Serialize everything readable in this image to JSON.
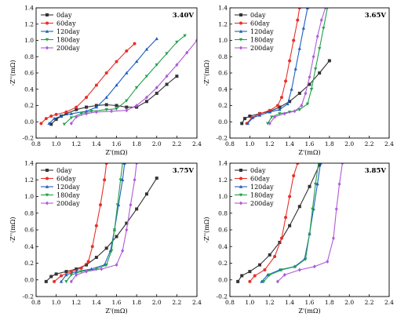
{
  "chart_data": [
    {
      "type": "line",
      "annotation": "3.40V",
      "xlabel": "Z'(mΩ)",
      "ylabel": "-Z''(mΩ)",
      "xlim": [
        0.8,
        2.4
      ],
      "ylim": [
        -0.2,
        1.4
      ],
      "xticks": [
        "0.8",
        "1.0",
        "1.2",
        "1.4",
        "1.6",
        "1.8",
        "2.0",
        "2.2",
        "2.4"
      ],
      "yticks": [
        "-0.2",
        "0.0",
        "0.2",
        "0.4",
        "0.6",
        "0.8",
        "1.0",
        "1.2",
        "1.4"
      ],
      "legend_position": "top-left",
      "series": [
        {
          "name": "0day",
          "color": "#333333",
          "marker": "square",
          "x": [
            0.95,
            1.0,
            1.05,
            1.1,
            1.2,
            1.3,
            1.4,
            1.5,
            1.6,
            1.7,
            1.8,
            1.9,
            2.0,
            2.1,
            2.2
          ],
          "y": [
            -0.03,
            0.03,
            0.07,
            0.1,
            0.15,
            0.18,
            0.2,
            0.21,
            0.2,
            0.18,
            0.18,
            0.25,
            0.35,
            0.46,
            0.56
          ]
        },
        {
          "name": "60day",
          "color": "#e8302a",
          "marker": "circle",
          "x": [
            0.85,
            0.9,
            0.95,
            1.0,
            1.1,
            1.2,
            1.3,
            1.4,
            1.5,
            1.6,
            1.7,
            1.78
          ],
          "y": [
            -0.02,
            0.04,
            0.07,
            0.09,
            0.12,
            0.18,
            0.3,
            0.45,
            0.6,
            0.74,
            0.87,
            0.96
          ]
        },
        {
          "name": "120day",
          "color": "#1f5fc4",
          "marker": "triangle",
          "x": [
            0.93,
            0.98,
            1.05,
            1.15,
            1.3,
            1.4,
            1.5,
            1.6,
            1.7,
            1.8,
            1.9,
            2.0
          ],
          "y": [
            -0.02,
            0.04,
            0.07,
            0.1,
            0.13,
            0.18,
            0.3,
            0.45,
            0.6,
            0.74,
            0.89,
            1.02
          ]
        },
        {
          "name": "180day",
          "color": "#22a04a",
          "marker": "triangle-down",
          "x": [
            1.08,
            1.15,
            1.25,
            1.35,
            1.5,
            1.6,
            1.7,
            1.8,
            1.9,
            2.0,
            2.1,
            2.2,
            2.28
          ],
          "y": [
            -0.03,
            0.05,
            0.1,
            0.13,
            0.15,
            0.16,
            0.26,
            0.42,
            0.56,
            0.7,
            0.84,
            0.98,
            1.06
          ]
        },
        {
          "name": "200day",
          "color": "#b05ad8",
          "marker": "diamond",
          "x": [
            1.15,
            1.2,
            1.3,
            1.4,
            1.55,
            1.7,
            1.8,
            1.9,
            2.0,
            2.1,
            2.2,
            2.3,
            2.4
          ],
          "y": [
            -0.02,
            0.06,
            0.1,
            0.12,
            0.13,
            0.14,
            0.2,
            0.3,
            0.42,
            0.56,
            0.7,
            0.85,
            1.0
          ]
        }
      ]
    },
    {
      "type": "line",
      "annotation": "3.65V",
      "xlabel": "Z'(mΩ)",
      "ylabel": "-Z''(mΩ)",
      "xlim": [
        0.8,
        2.4
      ],
      "ylim": [
        -0.2,
        1.4
      ],
      "xticks": [
        "0.8",
        "1.0",
        "1.2",
        "1.4",
        "1.6",
        "1.8",
        "2.0",
        "2.2",
        "2.4"
      ],
      "yticks": [
        "-0.2",
        "0.0",
        "0.2",
        "0.4",
        "0.6",
        "0.8",
        "1.0",
        "1.2",
        "1.4"
      ],
      "legend_position": "top-left",
      "series": [
        {
          "name": "0day",
          "color": "#333333",
          "marker": "square",
          "x": [
            0.92,
            0.95,
            1.0,
            1.1,
            1.2,
            1.3,
            1.4,
            1.5,
            1.6,
            1.7,
            1.8
          ],
          "y": [
            -0.02,
            0.04,
            0.07,
            0.1,
            0.13,
            0.18,
            0.25,
            0.35,
            0.46,
            0.6,
            0.75
          ]
        },
        {
          "name": "60day",
          "color": "#e8302a",
          "marker": "circle",
          "x": [
            0.97,
            1.02,
            1.1,
            1.2,
            1.28,
            1.32,
            1.36,
            1.4,
            1.44,
            1.48,
            1.5
          ],
          "y": [
            -0.02,
            0.05,
            0.1,
            0.14,
            0.2,
            0.3,
            0.5,
            0.75,
            1.0,
            1.25,
            1.4
          ]
        },
        {
          "name": "120day",
          "color": "#1f5fc4",
          "marker": "triangle",
          "x": [
            0.98,
            1.03,
            1.1,
            1.2,
            1.3,
            1.38,
            1.42,
            1.46,
            1.5,
            1.54,
            1.58
          ],
          "y": [
            -0.02,
            0.05,
            0.08,
            0.12,
            0.15,
            0.22,
            0.4,
            0.65,
            0.9,
            1.15,
            1.4
          ]
        },
        {
          "name": "180day",
          "color": "#22a04a",
          "marker": "triangle-down",
          "x": [
            1.18,
            1.22,
            1.3,
            1.4,
            1.5,
            1.58,
            1.62,
            1.66,
            1.7,
            1.74,
            1.78
          ],
          "y": [
            -0.02,
            0.06,
            0.1,
            0.12,
            0.15,
            0.22,
            0.4,
            0.65,
            0.9,
            1.15,
            1.4
          ]
        },
        {
          "name": "200day",
          "color": "#b05ad8",
          "marker": "diamond",
          "x": [
            1.2,
            1.25,
            1.35,
            1.45,
            1.52,
            1.56,
            1.6,
            1.64,
            1.68,
            1.72,
            1.76
          ],
          "y": [
            -0.02,
            0.06,
            0.1,
            0.13,
            0.2,
            0.35,
            0.55,
            0.8,
            1.05,
            1.25,
            1.4
          ]
        }
      ]
    },
    {
      "type": "line",
      "annotation": "3.75V",
      "xlabel": "Z'(mΩ)",
      "ylabel": "-Z''(mΩ)",
      "xlim": [
        0.8,
        2.4
      ],
      "ylim": [
        -0.2,
        1.4
      ],
      "xticks": [
        "0.8",
        "1.0",
        "1.2",
        "1.4",
        "1.6",
        "1.8",
        "2.0",
        "2.2",
        "2.4"
      ],
      "yticks": [
        "-0.2",
        "0.0",
        "0.2",
        "0.4",
        "0.6",
        "0.8",
        "1.0",
        "1.2",
        "1.4"
      ],
      "legend_position": "top-left",
      "series": [
        {
          "name": "0day",
          "color": "#333333",
          "marker": "square",
          "x": [
            0.9,
            0.95,
            1.0,
            1.1,
            1.2,
            1.3,
            1.4,
            1.5,
            1.6,
            1.7,
            1.8,
            1.9,
            2.0
          ],
          "y": [
            -0.02,
            0.04,
            0.07,
            0.1,
            0.13,
            0.18,
            0.27,
            0.38,
            0.52,
            0.68,
            0.85,
            1.03,
            1.22
          ]
        },
        {
          "name": "60day",
          "color": "#e8302a",
          "marker": "circle",
          "x": [
            0.98,
            1.05,
            1.15,
            1.25,
            1.32,
            1.36,
            1.4,
            1.44,
            1.48,
            1.5
          ],
          "y": [
            -0.02,
            0.05,
            0.1,
            0.14,
            0.22,
            0.4,
            0.65,
            0.9,
            1.2,
            1.4
          ]
        },
        {
          "name": "120day",
          "color": "#1f5fc4",
          "marker": "triangle",
          "x": [
            1.05,
            1.1,
            1.2,
            1.35,
            1.48,
            1.54,
            1.58,
            1.62,
            1.66,
            1.68
          ],
          "y": [
            -0.02,
            0.06,
            0.1,
            0.13,
            0.18,
            0.35,
            0.6,
            0.9,
            1.2,
            1.4
          ]
        },
        {
          "name": "180day",
          "color": "#22a04a",
          "marker": "triangle-down",
          "x": [
            1.1,
            1.15,
            1.25,
            1.4,
            1.5,
            1.55,
            1.58,
            1.61,
            1.64,
            1.66
          ],
          "y": [
            -0.02,
            0.06,
            0.1,
            0.13,
            0.18,
            0.35,
            0.6,
            0.9,
            1.2,
            1.4
          ]
        },
        {
          "name": "200day",
          "color": "#b05ad8",
          "marker": "diamond",
          "x": [
            1.15,
            1.2,
            1.3,
            1.45,
            1.6,
            1.66,
            1.7,
            1.74,
            1.78,
            1.8
          ],
          "y": [
            -0.02,
            0.06,
            0.1,
            0.13,
            0.18,
            0.35,
            0.6,
            0.9,
            1.2,
            1.4
          ]
        }
      ]
    },
    {
      "type": "line",
      "annotation": "3.85V",
      "xlabel": "Z'(mΩ)",
      "ylabel": "-Z''(mΩ)",
      "xlim": [
        0.8,
        2.4
      ],
      "ylim": [
        -0.2,
        1.4
      ],
      "xticks": [
        "0.8",
        "1.0",
        "1.2",
        "1.4",
        "1.6",
        "1.8",
        "2.0",
        "2.2",
        "2.4"
      ],
      "yticks": [
        "-0.2",
        "0.0",
        "0.2",
        "0.4",
        "0.6",
        "0.8",
        "1.0",
        "1.2",
        "1.4"
      ],
      "legend_position": "top-left",
      "series": [
        {
          "name": "0day",
          "color": "#333333",
          "marker": "square",
          "x": [
            0.88,
            0.92,
            1.0,
            1.1,
            1.2,
            1.3,
            1.4,
            1.5,
            1.6,
            1.7
          ],
          "y": [
            -0.02,
            0.05,
            0.1,
            0.18,
            0.3,
            0.45,
            0.65,
            0.88,
            1.12,
            1.38
          ]
        },
        {
          "name": "60day",
          "color": "#e8302a",
          "marker": "circle",
          "x": [
            1.0,
            1.05,
            1.15,
            1.25,
            1.32,
            1.36,
            1.4,
            1.44,
            1.48
          ],
          "y": [
            -0.02,
            0.05,
            0.12,
            0.28,
            0.5,
            0.75,
            1.0,
            1.25,
            1.4
          ]
        },
        {
          "name": "120day",
          "color": "#1f5fc4",
          "marker": "triangle",
          "x": [
            1.12,
            1.18,
            1.3,
            1.45,
            1.55,
            1.6,
            1.64,
            1.68,
            1.71
          ],
          "y": [
            -0.02,
            0.06,
            0.12,
            0.16,
            0.25,
            0.55,
            0.85,
            1.15,
            1.4
          ]
        },
        {
          "name": "180day",
          "color": "#22a04a",
          "marker": "triangle-down",
          "x": [
            1.14,
            1.2,
            1.32,
            1.46,
            1.56,
            1.6,
            1.63,
            1.66,
            1.69
          ],
          "y": [
            -0.02,
            0.06,
            0.12,
            0.16,
            0.25,
            0.55,
            0.85,
            1.15,
            1.4
          ]
        },
        {
          "name": "200day",
          "color": "#b05ad8",
          "marker": "diamond",
          "x": [
            1.28,
            1.35,
            1.5,
            1.65,
            1.78,
            1.84,
            1.87,
            1.9,
            1.93
          ],
          "y": [
            -0.02,
            0.06,
            0.12,
            0.16,
            0.22,
            0.5,
            0.85,
            1.15,
            1.4
          ]
        }
      ]
    }
  ]
}
